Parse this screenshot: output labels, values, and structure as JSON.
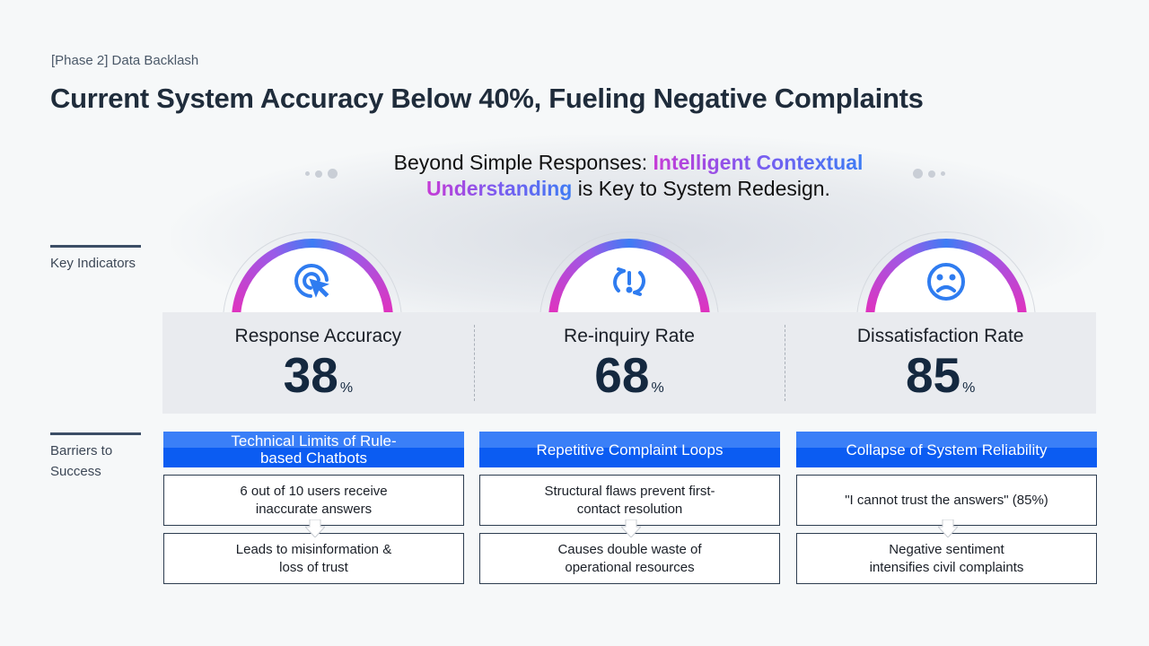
{
  "kicker": "[Phase 2] Data Backlash",
  "title": "Current System Accuracy Below 40%, Fueling Negative Complaints",
  "subtitle": {
    "pre": "Beyond Simple Responses: ",
    "hl1": "Intelligent Contextual",
    "hl2": "Understanding",
    "post": " is Key to System Redesign."
  },
  "side": {
    "indicators": "Key Indicators",
    "barriers": "Barriers to Success"
  },
  "metrics": [
    {
      "label": "Response Accuracy",
      "value": "38",
      "unit": "%",
      "icon": "cursor-click-icon"
    },
    {
      "label": "Re-inquiry Rate",
      "value": "68",
      "unit": "%",
      "icon": "refresh-alert-icon"
    },
    {
      "label": "Dissatisfaction Rate",
      "value": "85",
      "unit": "%",
      "icon": "sad-face-icon"
    }
  ],
  "barriers": [
    {
      "head": "Technical Limits of Rule-based Chatbots",
      "cause": "6 out of 10 users receive inaccurate answers",
      "effect": "Leads to misinformation & loss of trust"
    },
    {
      "head": "Repetitive Complaint Loops",
      "cause": "Structural flaws prevent first-contact resolution",
      "effect": "Causes double waste of operational resources"
    },
    {
      "head": "Collapse of System Reliability",
      "cause": "\"I cannot trust the answers\" (85%)",
      "effect": "Negative sentiment intensifies civil complaints"
    }
  ],
  "colors": {
    "accent": "#0b5cf2",
    "icon": "#2f7cf0"
  }
}
